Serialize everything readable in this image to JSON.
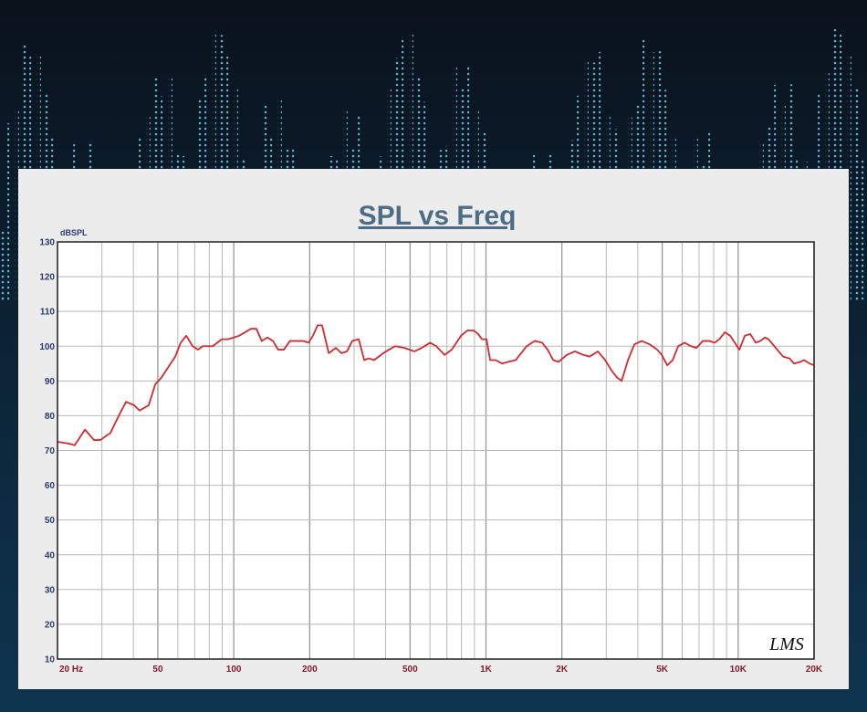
{
  "chart_data": {
    "type": "line",
    "title": "SPL vs Freq",
    "y_label": "dBSPL",
    "watermark": "LMS",
    "xscale": "log",
    "xlim": [
      20,
      20000
    ],
    "ylim": [
      10,
      130
    ],
    "xticks": [
      {
        "value": 20,
        "label": "20 Hz"
      },
      50,
      100,
      200,
      500,
      {
        "value": 1000,
        "label": "1K"
      },
      {
        "value": 2000,
        "label": "2K"
      },
      {
        "value": 5000,
        "label": "5K"
      },
      {
        "value": 10000,
        "label": "10K"
      },
      {
        "value": 20000,
        "label": "20K"
      }
    ],
    "xminorticks": [
      30,
      40,
      60,
      70,
      80,
      90,
      300,
      400,
      600,
      700,
      800,
      900,
      3000,
      4000,
      6000,
      7000,
      8000,
      9000
    ],
    "yticks": [
      10,
      20,
      30,
      40,
      50,
      60,
      70,
      80,
      90,
      100,
      110,
      120,
      130
    ],
    "grid": true,
    "x": [
      20,
      22.1,
      23.4,
      25.7,
      27.9,
      29.6,
      31.6,
      32.4,
      35.0,
      37.4,
      40.3,
      42.3,
      46.0,
      48.8,
      51.7,
      58.6,
      61.6,
      64.8,
      68.7,
      72.2,
      75.3,
      82.5,
      89.7,
      95.1,
      105,
      117,
      123,
      129,
      136,
      143,
      150,
      158,
      167,
      188,
      198,
      206,
      215,
      224,
      238,
      254,
      267,
      281,
      295,
      313,
      329,
      343,
      360,
      392,
      412,
      437,
      475,
      520,
      556,
      600,
      635,
      685,
      732,
      796,
      844,
      894,
      932,
      964,
      1005,
      1039,
      1092,
      1158,
      1227,
      1312,
      1450,
      1563,
      1671,
      1756,
      1847,
      1941,
      2091,
      2255,
      2431,
      2577,
      2778,
      2969,
      3148,
      3309,
      3450,
      3657,
      3876,
      4144,
      4467,
      4774,
      4977,
      5233,
      5502,
      5783,
      6131,
      6500,
      6833,
      7245,
      7680,
      8070,
      8417,
      8850,
      9300,
      10110,
      10630,
      11170,
      11740,
      12240,
      12760,
      13190,
      14100,
      15070,
      15980,
      16670,
      17670,
      18260,
      19210,
      20000
    ],
    "series": [
      {
        "name": "SPL",
        "color": "#d42a2e",
        "values": [
          72.5,
          72,
          71.5,
          76,
          73,
          73,
          74.5,
          75,
          80,
          84,
          83,
          81.5,
          83,
          89,
          91,
          97,
          101,
          103,
          100,
          99,
          100,
          100,
          102,
          102,
          103,
          105,
          105,
          101.5,
          102.5,
          101.5,
          99,
          99,
          101.5,
          101.5,
          101,
          103,
          106,
          106,
          98,
          99.5,
          98,
          98.5,
          101.5,
          102,
          96,
          96.5,
          96,
          98,
          99,
          100,
          99.5,
          98.5,
          99.5,
          101,
          100,
          97.5,
          99,
          103,
          104.5,
          104.5,
          103.5,
          102,
          102,
          96,
          96,
          95,
          95.5,
          96,
          100,
          101.5,
          101,
          99,
          96,
          95.5,
          97.5,
          98.5,
          97.5,
          97,
          98.5,
          96,
          93,
          91,
          90,
          96,
          100.5,
          101.5,
          100.5,
          99,
          97.5,
          94.5,
          96,
          100,
          101,
          100,
          99.5,
          101.5,
          101.5,
          101,
          102,
          104,
          103,
          99,
          103,
          103.5,
          101,
          101.5,
          102.5,
          102,
          99.5,
          97,
          96.5,
          95,
          95.5,
          96,
          95,
          94.5
        ]
      }
    ]
  }
}
